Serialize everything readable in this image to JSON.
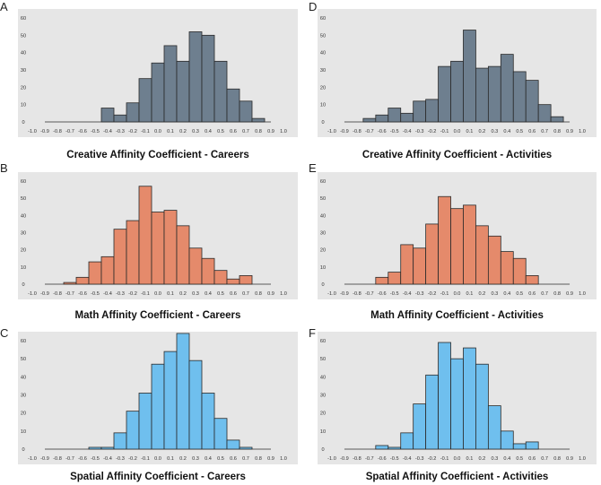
{
  "figure": {
    "background": "#e6e6e6",
    "bar_stroke": "#2a2a2a"
  },
  "chart_data": [
    {
      "id": "A",
      "type": "bar",
      "panel_label": "A",
      "xlabel": "Creative Affinity Coefficient - Careers",
      "color": "#6e7f8f",
      "xlim": [
        -1.0,
        1.0
      ],
      "ylim": [
        0,
        60
      ],
      "x_ticks": [
        "-1.0",
        "-0.9",
        "-0.8",
        "-0.7",
        "-0.6",
        "-0.5",
        "-0.4",
        "-0.3",
        "-0.2",
        "-0.1",
        "0.0",
        "0.1",
        "0.2",
        "0.3",
        "0.4",
        "0.5",
        "0.6",
        "0.7",
        "0.8",
        "0.9",
        "1.0"
      ],
      "y_ticks": [
        "0",
        "10",
        "20",
        "30",
        "40",
        "50",
        "60"
      ],
      "bin_width": 0.1,
      "bins": [
        {
          "x": -0.4,
          "value": 8
        },
        {
          "x": -0.3,
          "value": 4
        },
        {
          "x": -0.2,
          "value": 11
        },
        {
          "x": -0.1,
          "value": 25
        },
        {
          "x": 0.0,
          "value": 34
        },
        {
          "x": 0.1,
          "value": 44
        },
        {
          "x": 0.2,
          "value": 35
        },
        {
          "x": 0.3,
          "value": 52
        },
        {
          "x": 0.4,
          "value": 50
        },
        {
          "x": 0.5,
          "value": 35
        },
        {
          "x": 0.6,
          "value": 19
        },
        {
          "x": 0.7,
          "value": 12
        },
        {
          "x": 0.8,
          "value": 2
        }
      ]
    },
    {
      "id": "D",
      "type": "bar",
      "panel_label": "D",
      "xlabel": "Creative Affinity Coefficient - Activities",
      "color": "#6e7f8f",
      "xlim": [
        -1.0,
        1.0
      ],
      "ylim": [
        0,
        60
      ],
      "x_ticks": [
        "-1.0",
        "-0.9",
        "-0.8",
        "-0.7",
        "-0.6",
        "-0.5",
        "-0.4",
        "-0.3",
        "-0.2",
        "-0.1",
        "0.0",
        "0.1",
        "0.2",
        "0.3",
        "0.4",
        "0.5",
        "0.6",
        "0.7",
        "0.8",
        "0.9",
        "1.0"
      ],
      "y_ticks": [
        "0",
        "10",
        "20",
        "30",
        "40",
        "50",
        "60"
      ],
      "bin_width": 0.1,
      "bins": [
        {
          "x": -0.7,
          "value": 2
        },
        {
          "x": -0.6,
          "value": 4
        },
        {
          "x": -0.5,
          "value": 8
        },
        {
          "x": -0.4,
          "value": 5
        },
        {
          "x": -0.3,
          "value": 12
        },
        {
          "x": -0.2,
          "value": 13
        },
        {
          "x": -0.1,
          "value": 32
        },
        {
          "x": 0.0,
          "value": 35
        },
        {
          "x": 0.1,
          "value": 53
        },
        {
          "x": 0.2,
          "value": 31
        },
        {
          "x": 0.3,
          "value": 32
        },
        {
          "x": 0.4,
          "value": 39
        },
        {
          "x": 0.5,
          "value": 29
        },
        {
          "x": 0.6,
          "value": 24
        },
        {
          "x": 0.7,
          "value": 10
        },
        {
          "x": 0.8,
          "value": 3
        }
      ]
    },
    {
      "id": "B",
      "type": "bar",
      "panel_label": "B",
      "xlabel": "Math Affinity Coefficient - Careers",
      "color": "#e58a6b",
      "xlim": [
        -1.0,
        1.0
      ],
      "ylim": [
        0,
        60
      ],
      "x_ticks": [
        "-1.0",
        "-0.9",
        "-0.8",
        "-0.7",
        "-0.6",
        "-0.5",
        "-0.4",
        "-0.3",
        "-0.2",
        "-0.1",
        "0.0",
        "0.1",
        "0.2",
        "0.3",
        "0.4",
        "0.5",
        "0.6",
        "0.7",
        "0.8",
        "0.9",
        "1.0"
      ],
      "y_ticks": [
        "0",
        "10",
        "20",
        "30",
        "40",
        "50",
        "60"
      ],
      "bin_width": 0.1,
      "bins": [
        {
          "x": -0.7,
          "value": 1
        },
        {
          "x": -0.6,
          "value": 4
        },
        {
          "x": -0.5,
          "value": 13
        },
        {
          "x": -0.4,
          "value": 16
        },
        {
          "x": -0.3,
          "value": 32
        },
        {
          "x": -0.2,
          "value": 37
        },
        {
          "x": -0.1,
          "value": 57
        },
        {
          "x": 0.0,
          "value": 42
        },
        {
          "x": 0.1,
          "value": 43
        },
        {
          "x": 0.2,
          "value": 34
        },
        {
          "x": 0.3,
          "value": 21
        },
        {
          "x": 0.4,
          "value": 15
        },
        {
          "x": 0.5,
          "value": 8
        },
        {
          "x": 0.6,
          "value": 3
        },
        {
          "x": 0.7,
          "value": 5
        }
      ]
    },
    {
      "id": "E",
      "type": "bar",
      "panel_label": "E",
      "xlabel": "Math Affinity Coefficient - Activities",
      "color": "#e58a6b",
      "xlim": [
        -1.0,
        1.0
      ],
      "ylim": [
        0,
        60
      ],
      "x_ticks": [
        "-1.0",
        "-0.9",
        "-0.8",
        "-0.7",
        "-0.6",
        "-0.5",
        "-0.4",
        "-0.3",
        "-0.2",
        "-0.1",
        "0.0",
        "0.1",
        "0.2",
        "0.3",
        "0.4",
        "0.5",
        "0.6",
        "0.7",
        "0.8",
        "0.9",
        "1.0"
      ],
      "y_ticks": [
        "0",
        "10",
        "20",
        "30",
        "40",
        "50",
        "60"
      ],
      "bin_width": 0.1,
      "bins": [
        {
          "x": -0.6,
          "value": 4
        },
        {
          "x": -0.5,
          "value": 7
        },
        {
          "x": -0.4,
          "value": 23
        },
        {
          "x": -0.3,
          "value": 21
        },
        {
          "x": -0.2,
          "value": 35
        },
        {
          "x": -0.1,
          "value": 51
        },
        {
          "x": 0.0,
          "value": 44
        },
        {
          "x": 0.1,
          "value": 46
        },
        {
          "x": 0.2,
          "value": 34
        },
        {
          "x": 0.3,
          "value": 28
        },
        {
          "x": 0.4,
          "value": 19
        },
        {
          "x": 0.5,
          "value": 15
        },
        {
          "x": 0.6,
          "value": 5
        }
      ]
    },
    {
      "id": "C",
      "type": "bar",
      "panel_label": "C",
      "xlabel": "Spatial Affinity Coefficient - Careers",
      "color": "#6fbfee",
      "xlim": [
        -1.0,
        1.0
      ],
      "ylim": [
        0,
        60
      ],
      "x_ticks": [
        "-1.0",
        "-0.9",
        "-0.8",
        "-0.7",
        "-0.6",
        "-0.5",
        "-0.4",
        "-0.3",
        "-0.2",
        "-0.1",
        "0.0",
        "0.1",
        "0.2",
        "0.3",
        "0.4",
        "0.5",
        "0.6",
        "0.7",
        "0.8",
        "0.9",
        "1.0"
      ],
      "y_ticks": [
        "0",
        "10",
        "20",
        "30",
        "40",
        "50",
        "60"
      ],
      "bin_width": 0.1,
      "bins": [
        {
          "x": -0.5,
          "value": 1
        },
        {
          "x": -0.4,
          "value": 1
        },
        {
          "x": -0.3,
          "value": 9
        },
        {
          "x": -0.2,
          "value": 21
        },
        {
          "x": -0.1,
          "value": 31
        },
        {
          "x": 0.0,
          "value": 47
        },
        {
          "x": 0.1,
          "value": 54
        },
        {
          "x": 0.2,
          "value": 64
        },
        {
          "x": 0.3,
          "value": 49
        },
        {
          "x": 0.4,
          "value": 31
        },
        {
          "x": 0.5,
          "value": 17
        },
        {
          "x": 0.6,
          "value": 5
        },
        {
          "x": 0.7,
          "value": 1
        }
      ]
    },
    {
      "id": "F",
      "type": "bar",
      "panel_label": "F",
      "xlabel": "Spatial Affinity Coefficient - Activities",
      "color": "#6fbfee",
      "xlim": [
        -1.0,
        1.0
      ],
      "ylim": [
        0,
        60
      ],
      "x_ticks": [
        "-1.0",
        "-0.9",
        "-0.8",
        "-0.7",
        "-0.6",
        "-0.5",
        "-0.4",
        "-0.3",
        "-0.2",
        "-0.1",
        "0.0",
        "0.1",
        "0.2",
        "0.3",
        "0.4",
        "0.5",
        "0.6",
        "0.7",
        "0.8",
        "0.9",
        "1.0"
      ],
      "y_ticks": [
        "0",
        "10",
        "20",
        "30",
        "40",
        "50",
        "60"
      ],
      "bin_width": 0.1,
      "bins": [
        {
          "x": -0.6,
          "value": 2
        },
        {
          "x": -0.5,
          "value": 1
        },
        {
          "x": -0.4,
          "value": 9
        },
        {
          "x": -0.3,
          "value": 25
        },
        {
          "x": -0.2,
          "value": 41
        },
        {
          "x": -0.1,
          "value": 59
        },
        {
          "x": 0.0,
          "value": 50
        },
        {
          "x": 0.1,
          "value": 56
        },
        {
          "x": 0.2,
          "value": 47
        },
        {
          "x": 0.3,
          "value": 24
        },
        {
          "x": 0.4,
          "value": 10
        },
        {
          "x": 0.5,
          "value": 3
        },
        {
          "x": 0.6,
          "value": 4
        }
      ]
    }
  ]
}
